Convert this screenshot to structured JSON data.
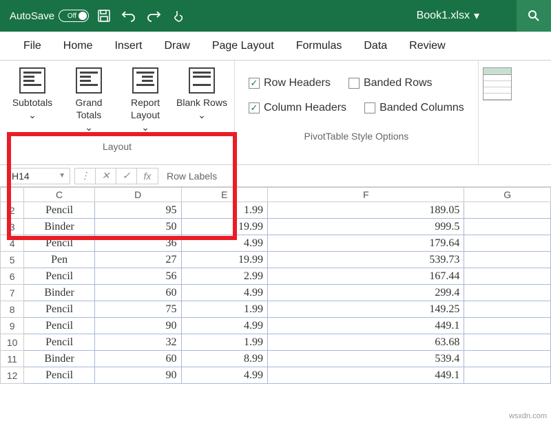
{
  "titlebar": {
    "autosave_label": "AutoSave",
    "toggle_state": "Off",
    "filename": "Book1.xlsx"
  },
  "tabs": [
    "File",
    "Home",
    "Insert",
    "Draw",
    "Page Layout",
    "Formulas",
    "Data",
    "Review"
  ],
  "ribbon": {
    "layout_group_label": "Layout",
    "layout_buttons": [
      {
        "label": "Subtotals"
      },
      {
        "label": "Grand Totals"
      },
      {
        "label": "Report Layout"
      },
      {
        "label": "Blank Rows"
      }
    ],
    "style_options_label": "PivotTable Style Options",
    "checkboxes": {
      "row_headers": {
        "label": "Row Headers",
        "checked": true
      },
      "banded_rows": {
        "label": "Banded Rows",
        "checked": false
      },
      "column_headers": {
        "label": "Column Headers",
        "checked": true
      },
      "banded_columns": {
        "label": "Banded Columns",
        "checked": false
      }
    }
  },
  "formula_bar": {
    "cell_ref": "H14",
    "content": "Row Labels"
  },
  "grid": {
    "col_headers": [
      "C",
      "D",
      "E",
      "F",
      "G"
    ],
    "rows": [
      {
        "n": "2",
        "c": "Pencil",
        "d": "95",
        "e": "1.99",
        "f": "189.05"
      },
      {
        "n": "3",
        "c": "Binder",
        "d": "50",
        "e": "19.99",
        "f": "999.5"
      },
      {
        "n": "4",
        "c": "Pencil",
        "d": "36",
        "e": "4.99",
        "f": "179.64"
      },
      {
        "n": "5",
        "c": "Pen",
        "d": "27",
        "e": "19.99",
        "f": "539.73"
      },
      {
        "n": "6",
        "c": "Pencil",
        "d": "56",
        "e": "2.99",
        "f": "167.44"
      },
      {
        "n": "7",
        "c": "Binder",
        "d": "60",
        "e": "4.99",
        "f": "299.4"
      },
      {
        "n": "8",
        "c": "Pencil",
        "d": "75",
        "e": "1.99",
        "f": "149.25"
      },
      {
        "n": "9",
        "c": "Pencil",
        "d": "90",
        "e": "4.99",
        "f": "449.1"
      },
      {
        "n": "10",
        "c": "Pencil",
        "d": "32",
        "e": "1.99",
        "f": "63.68"
      },
      {
        "n": "11",
        "c": "Binder",
        "d": "60",
        "e": "8.99",
        "f": "539.4"
      },
      {
        "n": "12",
        "c": "Pencil",
        "d": "90",
        "e": "4.99",
        "f": "449.1"
      }
    ]
  },
  "watermark": "wsxdn.com",
  "colors": {
    "titlebar_bg": "#197245",
    "highlight": "#eb1c24",
    "cell_border": "#a8b8d8"
  }
}
